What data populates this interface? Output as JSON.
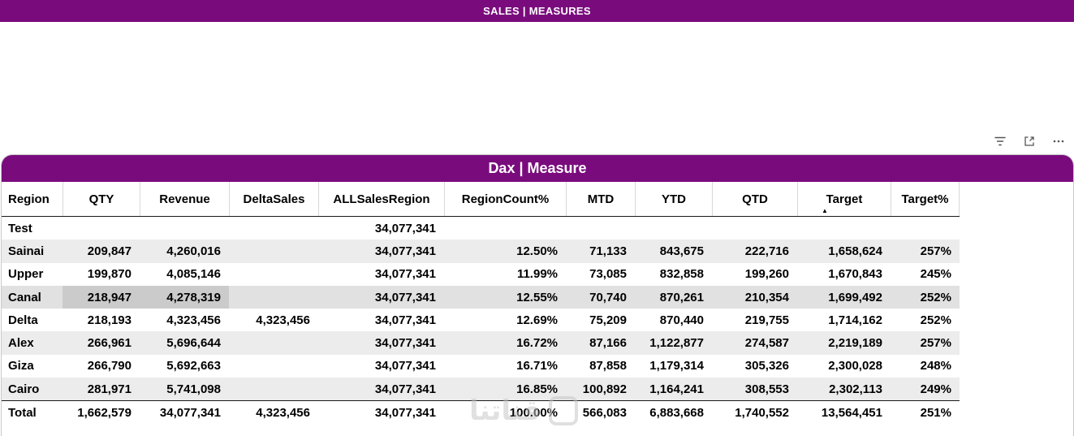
{
  "report_header": {
    "title": "SALES | MEASURES"
  },
  "visual": {
    "title": "Dax | Measure",
    "header_icons": [
      "filter-icon",
      "focus-mode-icon",
      "more-options-icon"
    ]
  },
  "table": {
    "columns": [
      "Region",
      "QTY",
      "Revenue",
      "DeltaSales",
      "ALLSalesRegion",
      "RegionCount%",
      "MTD",
      "YTD",
      "QTD",
      "Target",
      "Target%"
    ],
    "sorted_column": "Target",
    "sort_direction": "ascending",
    "rows": [
      [
        "Test",
        "",
        "",
        "",
        "34,077,341",
        "",
        "",
        "",
        "",
        "",
        ""
      ],
      [
        "Sainai",
        "209,847",
        "4,260,016",
        "",
        "34,077,341",
        "12.50%",
        "71,133",
        "843,675",
        "222,716",
        "1,658,624",
        "257%"
      ],
      [
        "Upper",
        "199,870",
        "4,085,146",
        "",
        "34,077,341",
        "11.99%",
        "73,085",
        "832,858",
        "199,260",
        "1,670,843",
        "245%"
      ],
      [
        "Canal",
        "218,947",
        "4,278,319",
        "",
        "34,077,341",
        "12.55%",
        "70,740",
        "870,261",
        "210,354",
        "1,699,492",
        "252%"
      ],
      [
        "Delta",
        "218,193",
        "4,323,456",
        "4,323,456",
        "34,077,341",
        "12.69%",
        "75,209",
        "870,440",
        "219,755",
        "1,714,162",
        "252%"
      ],
      [
        "Alex",
        "266,961",
        "5,696,644",
        "",
        "34,077,341",
        "16.72%",
        "87,166",
        "1,122,877",
        "274,587",
        "2,219,189",
        "257%"
      ],
      [
        "Giza",
        "266,790",
        "5,692,663",
        "",
        "34,077,341",
        "16.71%",
        "87,858",
        "1,179,314",
        "305,326",
        "2,300,028",
        "248%"
      ],
      [
        "Cairo",
        "281,971",
        "5,741,098",
        "",
        "34,077,341",
        "16.85%",
        "100,892",
        "1,164,241",
        "308,553",
        "2,302,113",
        "249%"
      ]
    ],
    "total": [
      "Total",
      "1,662,579",
      "34,077,341",
      "4,323,456",
      "34,077,341",
      "100.00%",
      "566,083",
      "6,883,668",
      "1,740,552",
      "13,564,451",
      "251%"
    ],
    "selection": {
      "region": "Canal",
      "row_index": 3,
      "cell_columns": [
        1,
        2
      ]
    }
  },
  "watermark": {
    "text": "قناتنا"
  },
  "colors": {
    "accent": "#7a0b7d",
    "header_text": "#ffffff",
    "stripe": "#ececec",
    "selected_row": "#e1e1e1",
    "selected_cell": "#cbcbcb"
  }
}
